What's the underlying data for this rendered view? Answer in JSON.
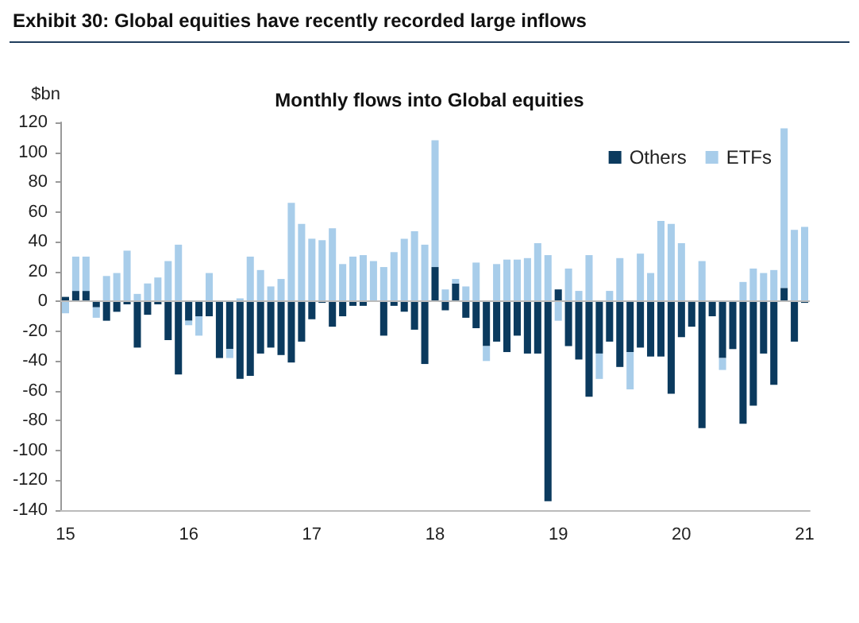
{
  "chart_data": {
    "type": "bar",
    "title": "Exhibit 30: Global equities have recently recorded large inflows",
    "subtitle": "Monthly flows into Global equities",
    "ylabel": "$bn",
    "categories": [
      "15",
      null,
      null,
      null,
      null,
      null,
      null,
      null,
      null,
      null,
      null,
      null,
      "16",
      null,
      null,
      null,
      null,
      null,
      null,
      null,
      null,
      null,
      null,
      null,
      "17",
      null,
      null,
      null,
      null,
      null,
      null,
      null,
      null,
      null,
      null,
      null,
      "18",
      null,
      null,
      null,
      null,
      null,
      null,
      null,
      null,
      null,
      null,
      null,
      "19",
      null,
      null,
      null,
      null,
      null,
      null,
      null,
      null,
      null,
      null,
      null,
      "20",
      null,
      null,
      null,
      null,
      null,
      null,
      null,
      null,
      null,
      null,
      null,
      "21"
    ],
    "stacked": true,
    "legend": "top right",
    "ylim": [
      -140,
      120
    ],
    "yticks": [
      -140,
      -120,
      -100,
      -80,
      -60,
      -40,
      -20,
      0,
      20,
      40,
      60,
      80,
      100,
      120
    ],
    "series": [
      {
        "name": "Others",
        "color": "#0b3a5e",
        "values": [
          3,
          7,
          7,
          -4,
          -13,
          -7,
          -2,
          -31,
          -9,
          -2,
          -26,
          -49,
          -13,
          -10,
          -10,
          -38,
          -32,
          -52,
          -50,
          -35,
          -31,
          -36,
          -41,
          -27,
          -12,
          -1,
          -17,
          -10,
          -3,
          -3,
          0,
          -23,
          -3,
          -7,
          -19,
          -42,
          23,
          -6,
          12,
          -11,
          -18,
          -30,
          -27,
          -34,
          -23,
          -35,
          -35,
          -134,
          8,
          -30,
          -39,
          -64,
          -35,
          -27,
          -44,
          -34,
          -31,
          -37,
          -37,
          -62,
          -24,
          -17,
          -85,
          -10,
          -38,
          -32,
          -82,
          -70,
          -35,
          -56,
          9,
          -27,
          -1
        ]
      },
      {
        "name": "ETFs",
        "color": "#a8cdea",
        "values": [
          -8,
          23,
          23,
          -7,
          17,
          19,
          34,
          5,
          12,
          16,
          27,
          38,
          -3,
          -13,
          19,
          0,
          -6,
          2,
          30,
          21,
          10,
          15,
          66,
          52,
          42,
          41,
          49,
          25,
          30,
          31,
          27,
          23,
          33,
          42,
          47,
          38,
          85,
          8,
          3,
          10,
          26,
          -10,
          25,
          28,
          28,
          29,
          39,
          31,
          -13,
          22,
          7,
          31,
          -17,
          7,
          29,
          -25,
          32,
          19,
          54,
          52,
          39,
          0,
          27,
          0,
          -8,
          0,
          13,
          22,
          19,
          21,
          107,
          48,
          50
        ]
      }
    ]
  }
}
